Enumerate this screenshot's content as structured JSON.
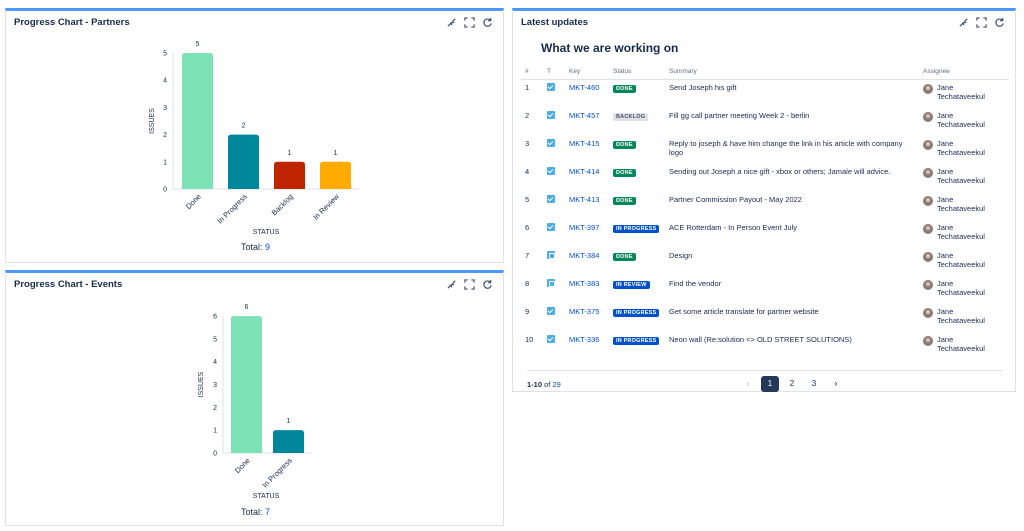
{
  "partners": {
    "title": "Progress Chart - Partners",
    "total_label": "Total:",
    "total_value": "9",
    "xlabel": "STATUS",
    "ylabel": "ISSUES"
  },
  "events": {
    "title": "Progress Chart - Events",
    "total_label": "Total:",
    "total_value": "7",
    "xlabel": "STATUS",
    "ylabel": "ISSUES"
  },
  "updates": {
    "title": "Latest updates",
    "subtitle": "What we are working on",
    "columns": [
      "#",
      "T",
      "Key",
      "Status",
      "Summary",
      "Assignee"
    ],
    "rows": [
      {
        "n": "1",
        "type": "task",
        "key": "MKT-460",
        "status": "DONE",
        "status_class": "done",
        "summary": "Send Joseph his gift",
        "assignee_first": "Jane",
        "assignee_last": "Techataveekul"
      },
      {
        "n": "2",
        "type": "task",
        "key": "MKT-457",
        "status": "BACKLOG",
        "status_class": "backlog",
        "summary": "Fill gg call partner meeting Week 2 - berlin",
        "assignee_first": "Jane",
        "assignee_last": "Techataveekul"
      },
      {
        "n": "3",
        "type": "task",
        "key": "MKT-415",
        "status": "DONE",
        "status_class": "done",
        "summary": "Reply to joseph & have him change the link in his article with company logo",
        "assignee_first": "Jane",
        "assignee_last": "Techataveekul"
      },
      {
        "n": "4",
        "type": "task",
        "key": "MKT-414",
        "status": "DONE",
        "status_class": "done",
        "summary": "Sending out Joseph a nice gift - xbox or others; Jamale will advice.",
        "assignee_first": "Jane",
        "assignee_last": "Techataveekul"
      },
      {
        "n": "5",
        "type": "task",
        "key": "MKT-413",
        "status": "DONE",
        "status_class": "done",
        "summary": "Partner Commission Payout - May 2022",
        "assignee_first": "Jane",
        "assignee_last": "Techataveekul"
      },
      {
        "n": "6",
        "type": "task",
        "key": "MKT-397",
        "status": "IN PROGRESS",
        "status_class": "progress",
        "summary": "ACE Rotterdam - In Person Event July",
        "assignee_first": "Jane",
        "assignee_last": "Techataveekul"
      },
      {
        "n": "7",
        "type": "subtask",
        "key": "MKT-384",
        "status": "DONE",
        "status_class": "done",
        "summary": "Design",
        "assignee_first": "Jane",
        "assignee_last": "Techataveekul"
      },
      {
        "n": "8",
        "type": "subtask",
        "key": "MKT-383",
        "status": "IN REVIEW",
        "status_class": "review",
        "summary": "Find the vendor",
        "assignee_first": "Jane",
        "assignee_last": "Techataveekul"
      },
      {
        "n": "9",
        "type": "task",
        "key": "MKT-375",
        "status": "IN PROGRESS",
        "status_class": "progress",
        "summary": "Get some article translate for partner website",
        "assignee_first": "Jane",
        "assignee_last": "Techataveekul"
      },
      {
        "n": "10",
        "type": "task",
        "key": "MKT-336",
        "status": "IN PROGRESS",
        "status_class": "progress",
        "summary": "Neon wall (Re:solution <> OLD STREET SOLUTIONS)",
        "assignee_first": "Jane",
        "assignee_last": "Techataveekul"
      }
    ],
    "range_text": "1-10",
    "range_of": "of",
    "range_total": "29",
    "pages": [
      "1",
      "2",
      "3"
    ],
    "current_page": "1"
  },
  "chart_data": [
    {
      "type": "bar",
      "categories": [
        "Done",
        "In Progress",
        "Backlog",
        "In Review"
      ],
      "values": [
        5,
        2,
        1,
        1
      ],
      "colors": [
        "#7de3b6",
        "#00879c",
        "#bf2600",
        "#ffab00"
      ],
      "xlabel": "STATUS",
      "ylabel": "ISSUES",
      "ylim": [
        0,
        5
      ],
      "yticks": [
        0,
        1,
        2,
        3,
        4,
        5
      ]
    },
    {
      "type": "bar",
      "categories": [
        "Done",
        "In Progress"
      ],
      "values": [
        6,
        1
      ],
      "colors": [
        "#7de3b6",
        "#00879c"
      ],
      "xlabel": "STATUS",
      "ylabel": "ISSUES",
      "ylim": [
        0,
        6
      ],
      "yticks": [
        0,
        1,
        2,
        3,
        4,
        5,
        6
      ]
    }
  ]
}
